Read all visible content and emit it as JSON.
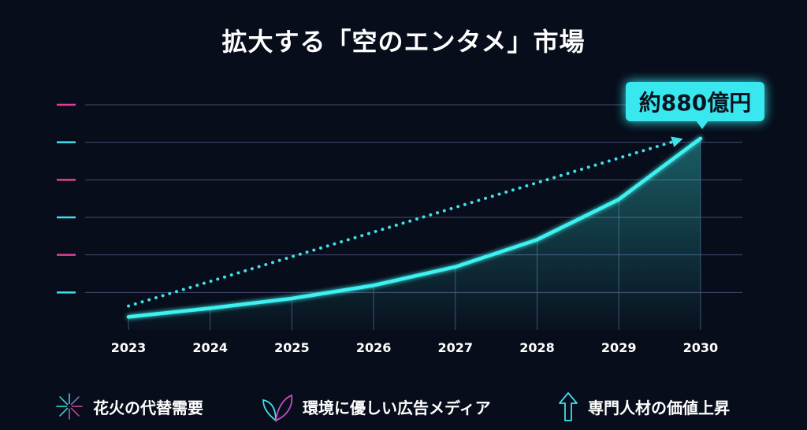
{
  "title": "拡大する「空のエンタメ」市場",
  "chart_data": {
    "type": "line",
    "title": "拡大する「空のエンタメ」市場",
    "xlabel": "",
    "ylabel": "",
    "categories": [
      "2023",
      "2024",
      "2025",
      "2026",
      "2027",
      "2028",
      "2029",
      "2030"
    ],
    "values": [
      60,
      100,
      145,
      205,
      290,
      415,
      600,
      880
    ],
    "trend": {
      "style": "dotted-arrow",
      "from": 110,
      "to": 880
    },
    "ylim": [
      0,
      1035
    ],
    "y_gridlines": 6,
    "grid": true,
    "annotation": "約880億円",
    "colors": {
      "line": "#3ef2f0",
      "axis": "#36d6e0",
      "accent": "#e0409a",
      "background": "#070d1a"
    }
  },
  "legend": [
    {
      "icon": "fireworks-icon",
      "label": "花火の代替需要"
    },
    {
      "icon": "leaf-icon",
      "label": "環境に優しい広告メディア"
    },
    {
      "icon": "arrow-up-icon",
      "label": "専門人材の価値上昇"
    }
  ]
}
